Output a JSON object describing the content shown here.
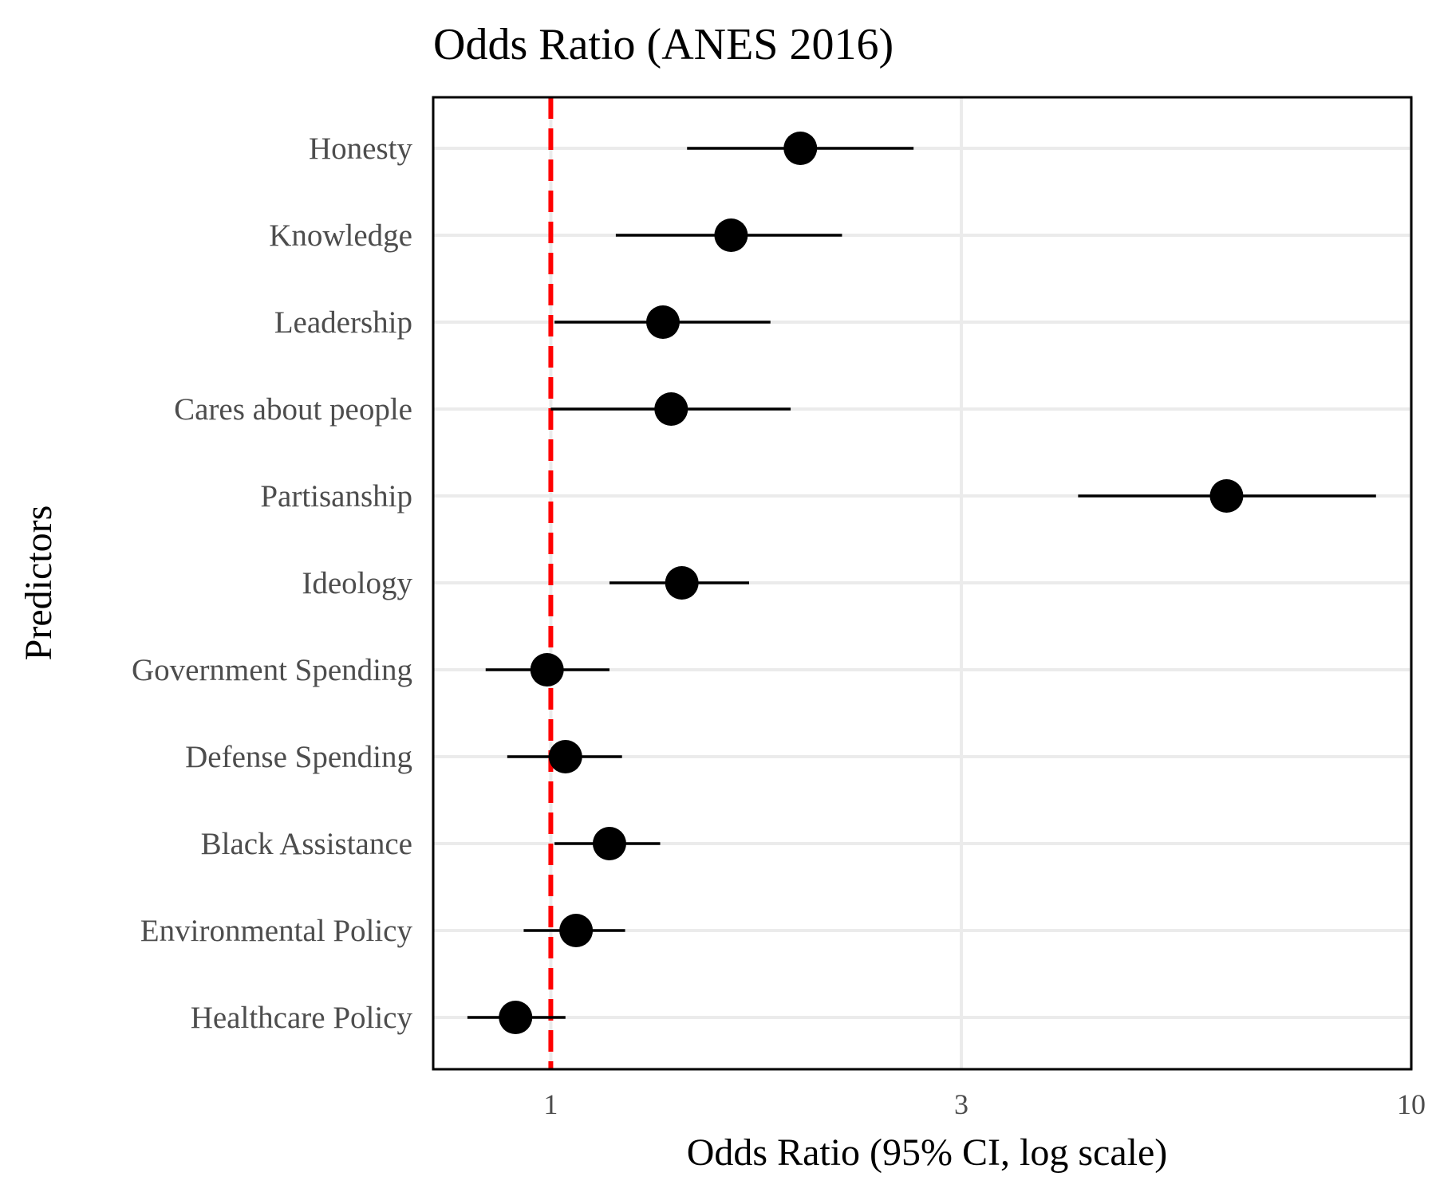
{
  "chart_data": {
    "type": "scatter",
    "title": "Odds Ratio (ANES 2016)",
    "xlabel": "Odds Ratio (95% CI, log scale)",
    "ylabel": "Predictors",
    "x_scale": "log",
    "xlim": [
      0.73,
      10
    ],
    "x_ticks": [
      {
        "value": 1,
        "label": "1"
      },
      {
        "value": 3,
        "label": "3"
      },
      {
        "value": 10,
        "label": "10"
      }
    ],
    "reference_line": {
      "value": 1,
      "style": "dashed",
      "color": "#ff0000"
    },
    "grid": true,
    "predictors": [
      {
        "label": "Honesty",
        "estimate": 1.95,
        "lower": 1.44,
        "upper": 2.64
      },
      {
        "label": "Knowledge",
        "estimate": 1.62,
        "lower": 1.19,
        "upper": 2.18
      },
      {
        "label": "Leadership",
        "estimate": 1.35,
        "lower": 1.01,
        "upper": 1.8
      },
      {
        "label": "Cares about people",
        "estimate": 1.38,
        "lower": 1.0,
        "upper": 1.9
      },
      {
        "label": "Partisanship",
        "estimate": 6.1,
        "lower": 4.1,
        "upper": 9.1
      },
      {
        "label": "Ideology",
        "estimate": 1.42,
        "lower": 1.17,
        "upper": 1.7
      },
      {
        "label": "Government Spending",
        "estimate": 0.99,
        "lower": 0.84,
        "upper": 1.17
      },
      {
        "label": "Defense Spending",
        "estimate": 1.04,
        "lower": 0.89,
        "upper": 1.21
      },
      {
        "label": "Black Assistance",
        "estimate": 1.17,
        "lower": 1.01,
        "upper": 1.34
      },
      {
        "label": "Environmental Policy",
        "estimate": 1.07,
        "lower": 0.93,
        "upper": 1.22
      },
      {
        "label": "Healthcare Policy",
        "estimate": 0.91,
        "lower": 0.8,
        "upper": 1.04
      }
    ],
    "colors": {
      "point": "#000000",
      "ci": "#000000",
      "reference": "#ff0000",
      "grid": "#ebebeb",
      "panel_border": "#000000"
    }
  }
}
